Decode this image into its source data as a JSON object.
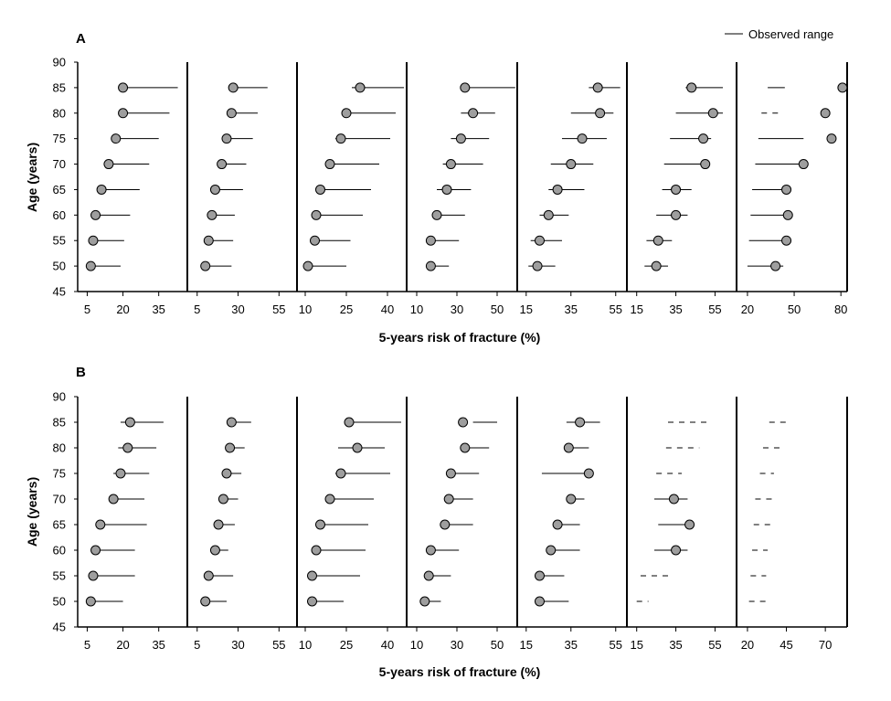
{
  "chart_data": [
    {
      "type": "dot-range",
      "panel_label": "A",
      "xlabel": "5-years risk of fracture (%)",
      "ylabel": "Age (years)",
      "legend": {
        "label": "Observed range",
        "position": "top-right"
      },
      "y_ticks": [
        "45",
        "50",
        "55",
        "60",
        "65",
        "70",
        "75",
        "80",
        "85",
        "90"
      ],
      "y_range": [
        45,
        90
      ],
      "ages": [
        50,
        55,
        60,
        65,
        70,
        75,
        80,
        85
      ],
      "subpanels": [
        {
          "x_range": [
            1,
            47
          ],
          "x_ticks": [
            "5",
            "20",
            "35"
          ],
          "points": [
            6.5,
            7.5,
            8.5,
            11,
            14,
            17,
            20,
            20
          ],
          "ranges": [
            [
              6.5,
              19
            ],
            [
              7.5,
              20.5
            ],
            [
              8.5,
              23
            ],
            [
              11,
              27
            ],
            [
              14,
              31
            ],
            [
              17,
              35
            ],
            [
              20,
              39.5
            ],
            [
              20,
              43
            ]
          ],
          "dashed": [
            false,
            false,
            false,
            false,
            false,
            false,
            false,
            false
          ]
        },
        {
          "x_range": [
            -1,
            66
          ],
          "x_ticks": [
            "5",
            "30",
            "55"
          ],
          "points": [
            10,
            12,
            14,
            16,
            20,
            23,
            26,
            27
          ],
          "ranges": [
            [
              10,
              26
            ],
            [
              12,
              27
            ],
            [
              14,
              28
            ],
            [
              16,
              33
            ],
            [
              20,
              35
            ],
            [
              23,
              39
            ],
            [
              26,
              42
            ],
            [
              27,
              48
            ]
          ],
          "dashed": [
            false,
            false,
            false,
            false,
            false,
            false,
            false,
            false
          ]
        },
        {
          "x_range": [
            7,
            47
          ],
          "x_ticks": [
            "10",
            "25",
            "40"
          ],
          "points": [
            11,
            13.5,
            14,
            15.5,
            19,
            23,
            25,
            30
          ],
          "ranges": [
            [
              11,
              25
            ],
            [
              13.5,
              26.5
            ],
            [
              14,
              31
            ],
            [
              15.5,
              34
            ],
            [
              19,
              37
            ],
            [
              21,
              41
            ],
            [
              24,
              43
            ],
            [
              27,
              46
            ]
          ],
          "dashed": [
            false,
            false,
            false,
            false,
            false,
            false,
            false,
            false
          ]
        },
        {
          "x_range": [
            5,
            60
          ],
          "x_ticks": [
            "10",
            "30",
            "50"
          ],
          "points": [
            17,
            17,
            20,
            25,
            27,
            32,
            38,
            34
          ],
          "ranges": [
            [
              15,
              26
            ],
            [
              17,
              31
            ],
            [
              20,
              34
            ],
            [
              20,
              37
            ],
            [
              23,
              43
            ],
            [
              27,
              46
            ],
            [
              32,
              49
            ],
            [
              34,
              59
            ]
          ],
          "dashed": [
            false,
            false,
            false,
            false,
            false,
            false,
            false,
            false
          ]
        },
        {
          "x_range": [
            11,
            60
          ],
          "x_ticks": [
            "15",
            "35",
            "55"
          ],
          "points": [
            20,
            21,
            25,
            29,
            35,
            40,
            48,
            47
          ],
          "ranges": [
            [
              16,
              28
            ],
            [
              17,
              31
            ],
            [
              21,
              34
            ],
            [
              25,
              41
            ],
            [
              26,
              45
            ],
            [
              31,
              51
            ],
            [
              35,
              54
            ],
            [
              43,
              57
            ]
          ],
          "dashed": [
            false,
            false,
            false,
            false,
            false,
            false,
            false,
            false
          ]
        },
        {
          "x_range": [
            10,
            66
          ],
          "x_ticks": [
            "15",
            "35",
            "55"
          ],
          "points": [
            25,
            26,
            35,
            35,
            50,
            49,
            54,
            43
          ],
          "ranges": [
            [
              19,
              31
            ],
            [
              20,
              33
            ],
            [
              25,
              41
            ],
            [
              28,
              43
            ],
            [
              29,
              51
            ],
            [
              32,
              53
            ],
            [
              35,
              59
            ],
            [
              40,
              59
            ]
          ],
          "dashed": [
            false,
            false,
            false,
            false,
            false,
            false,
            false,
            false
          ]
        },
        {
          "x_range": [
            13,
            84
          ],
          "x_ticks": [
            "20",
            "50",
            "80"
          ],
          "points": [
            38,
            45,
            46,
            45,
            56,
            74,
            70,
            81
          ],
          "ranges": [
            [
              20,
              43
            ],
            [
              21,
              46
            ],
            [
              22,
              46
            ],
            [
              23,
              46
            ],
            [
              25,
              56
            ],
            [
              27,
              56
            ],
            [
              29,
              42
            ],
            [
              33,
              44
            ]
          ],
          "dashed": [
            false,
            false,
            false,
            false,
            false,
            false,
            true,
            false
          ]
        }
      ]
    },
    {
      "type": "dot-range",
      "panel_label": "B",
      "xlabel": "5-years risk of fracture (%)",
      "ylabel": "Age (years)",
      "y_ticks": [
        "45",
        "50",
        "55",
        "60",
        "65",
        "70",
        "75",
        "80",
        "85",
        "90"
      ],
      "y_range": [
        45,
        90
      ],
      "ages": [
        50,
        55,
        60,
        65,
        70,
        75,
        80,
        85
      ],
      "subpanels": [
        {
          "x_range": [
            1,
            47
          ],
          "x_ticks": [
            "5",
            "20",
            "35"
          ],
          "points": [
            6.5,
            7.5,
            8.5,
            10.5,
            16,
            19,
            22,
            23
          ],
          "ranges": [
            [
              6.5,
              20
            ],
            [
              7.5,
              25
            ],
            [
              8.5,
              25
            ],
            [
              10.5,
              30
            ],
            [
              16,
              29
            ],
            [
              16,
              31
            ],
            [
              18,
              34
            ],
            [
              19,
              37
            ]
          ],
          "dashed": [
            false,
            false,
            false,
            false,
            false,
            false,
            false,
            false
          ]
        },
        {
          "x_range": [
            -1,
            66
          ],
          "x_ticks": [
            "5",
            "30",
            "55"
          ],
          "points": [
            10,
            12,
            16,
            18,
            21,
            23,
            25,
            26
          ],
          "ranges": [
            [
              10,
              23
            ],
            [
              12,
              27
            ],
            [
              16,
              24
            ],
            [
              18,
              28
            ],
            [
              21,
              30
            ],
            [
              23,
              32
            ],
            [
              25,
              34
            ],
            [
              26,
              38
            ]
          ],
          "dashed": [
            false,
            false,
            false,
            false,
            false,
            false,
            false,
            false
          ]
        },
        {
          "x_range": [
            7,
            47
          ],
          "x_ticks": [
            "10",
            "25",
            "40"
          ],
          "points": [
            12.5,
            12.5,
            14,
            15.5,
            19,
            23,
            29,
            26
          ],
          "ranges": [
            [
              12,
              24
            ],
            [
              12.5,
              30
            ],
            [
              14,
              32
            ],
            [
              15.5,
              33
            ],
            [
              18,
              35
            ],
            [
              21,
              41
            ],
            [
              22,
              39
            ],
            [
              26,
              45
            ]
          ],
          "dashed": [
            false,
            false,
            false,
            false,
            false,
            false,
            false,
            false
          ]
        },
        {
          "x_range": [
            5,
            60
          ],
          "x_ticks": [
            "10",
            "30",
            "50"
          ],
          "points": [
            14,
            16,
            17,
            24,
            26,
            27,
            34,
            33
          ],
          "ranges": [
            [
              14,
              22
            ],
            [
              16,
              27
            ],
            [
              17,
              31
            ],
            [
              24,
              38
            ],
            [
              26,
              38
            ],
            [
              25,
              41
            ],
            [
              32,
              46
            ],
            [
              38,
              50
            ]
          ],
          "dashed": [
            false,
            false,
            false,
            false,
            false,
            false,
            false,
            false
          ]
        },
        {
          "x_range": [
            11,
            60
          ],
          "x_ticks": [
            "15",
            "35",
            "55"
          ],
          "points": [
            21,
            21,
            26,
            29,
            35,
            43,
            34,
            39
          ],
          "ranges": [
            [
              21,
              34
            ],
            [
              21,
              32
            ],
            [
              27,
              39
            ],
            [
              29,
              39
            ],
            [
              34,
              41
            ],
            [
              22,
              43
            ],
            [
              36,
              43
            ],
            [
              33,
              48
            ]
          ],
          "dashed": [
            false,
            false,
            false,
            false,
            false,
            false,
            false,
            false
          ]
        },
        {
          "x_range": [
            10,
            66
          ],
          "x_ticks": [
            "15",
            "35",
            "55"
          ],
          "points": [
            null,
            null,
            35,
            42,
            34,
            null,
            null,
            null
          ],
          "ranges": [
            [
              15,
              21
            ],
            [
              17,
              31
            ],
            [
              24,
              41
            ],
            [
              26,
              44
            ],
            [
              24,
              41
            ],
            [
              25,
              38
            ],
            [
              30,
              47
            ],
            [
              31,
              52
            ]
          ],
          "dashed": [
            true,
            true,
            false,
            false,
            false,
            true,
            true,
            true
          ]
        },
        {
          "x_range": [
            13,
            84
          ],
          "x_ticks": [
            "20",
            "45",
            "70"
          ],
          "points": [
            null,
            null,
            null,
            null,
            null,
            null,
            null,
            null
          ],
          "ranges": [
            [
              21,
              32
            ],
            [
              22,
              32
            ],
            [
              23,
              33
            ],
            [
              24,
              35
            ],
            [
              25,
              36
            ],
            [
              28,
              37
            ],
            [
              30,
              41
            ],
            [
              34,
              46
            ]
          ],
          "dashed": [
            true,
            true,
            true,
            true,
            true,
            true,
            true,
            true
          ]
        }
      ]
    }
  ]
}
